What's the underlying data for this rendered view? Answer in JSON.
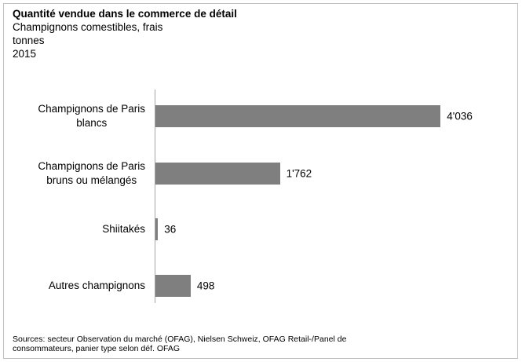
{
  "chart_data": {
    "type": "bar",
    "orientation": "horizontal",
    "title": "Quantité vendue dans le commerce de détail",
    "subtitle": "Champignons comestibles, frais",
    "unit": "tonnes",
    "year": "2015",
    "categories": [
      "Champignons de Paris\nblancs",
      "Champignons de Paris\nbruns ou mélangés",
      "Shiitakés",
      "Autres champignons"
    ],
    "values": [
      4036,
      1762,
      36,
      498
    ],
    "value_labels": [
      "4'036",
      "1'762",
      "36",
      "498"
    ],
    "color": "#7f7f7f",
    "xlim": [
      0,
      4800
    ],
    "source": "Sources: secteur Observation du marché (OFAG), Nielsen Schweiz, OFAG Retail-/Panel de consommateurs, panier type selon déf. OFAG"
  }
}
